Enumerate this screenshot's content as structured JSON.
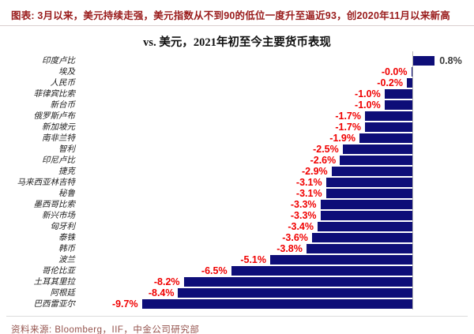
{
  "header": {
    "caption": "图表: 3月以来，美元持续走强，美元指数从不到90的低位一度升至逼近93，创2020年11月以来新高"
  },
  "chart_data": {
    "type": "bar",
    "orientation": "horizontal",
    "title": "vs. 美元，2021年初至今主要货币表现",
    "categories": [
      "印度卢比",
      "埃及",
      "人民币",
      "菲律宾比索",
      "新台币",
      "俄罗斯卢布",
      "新加坡元",
      "南非兰特",
      "智利",
      "印尼卢比",
      "捷克",
      "马来西亚林吉特",
      "秘鲁",
      "墨西哥比索",
      "新兴市场",
      "匈牙利",
      "泰铢",
      "韩币",
      "波兰",
      "哥伦比亚",
      "土耳其里拉",
      "阿根廷",
      "巴西雷亚尔"
    ],
    "values": [
      0.8,
      -0.0,
      -0.2,
      -1.0,
      -1.0,
      -1.7,
      -1.7,
      -1.9,
      -2.5,
      -2.6,
      -2.9,
      -3.1,
      -3.1,
      -3.3,
      -3.3,
      -3.4,
      -3.6,
      -3.8,
      -5.1,
      -6.5,
      -8.2,
      -8.4,
      -9.7
    ],
    "labels": [
      "0.8%",
      "-0.0%",
      "-0.2%",
      "-1.0%",
      "-1.0%",
      "-1.7%",
      "-1.7%",
      "-1.9%",
      "-2.5%",
      "-2.6%",
      "-2.9%",
      "-3.1%",
      "-3.1%",
      "-3.3%",
      "-3.3%",
      "-3.4%",
      "-3.6%",
      "-3.8%",
      "-5.1%",
      "-6.5%",
      "-8.2%",
      "-8.4%",
      "-9.7%"
    ],
    "unit": "%",
    "xlim": [
      -10.5,
      2.0
    ],
    "grid": false,
    "legend": "none",
    "bar_color": "#0e0e78",
    "negative_label_color": "#f00000",
    "positive_label_color": "#3a3a3a"
  },
  "footer": {
    "source": "资料来源: Bloomberg，IIF，中金公司研究部"
  }
}
